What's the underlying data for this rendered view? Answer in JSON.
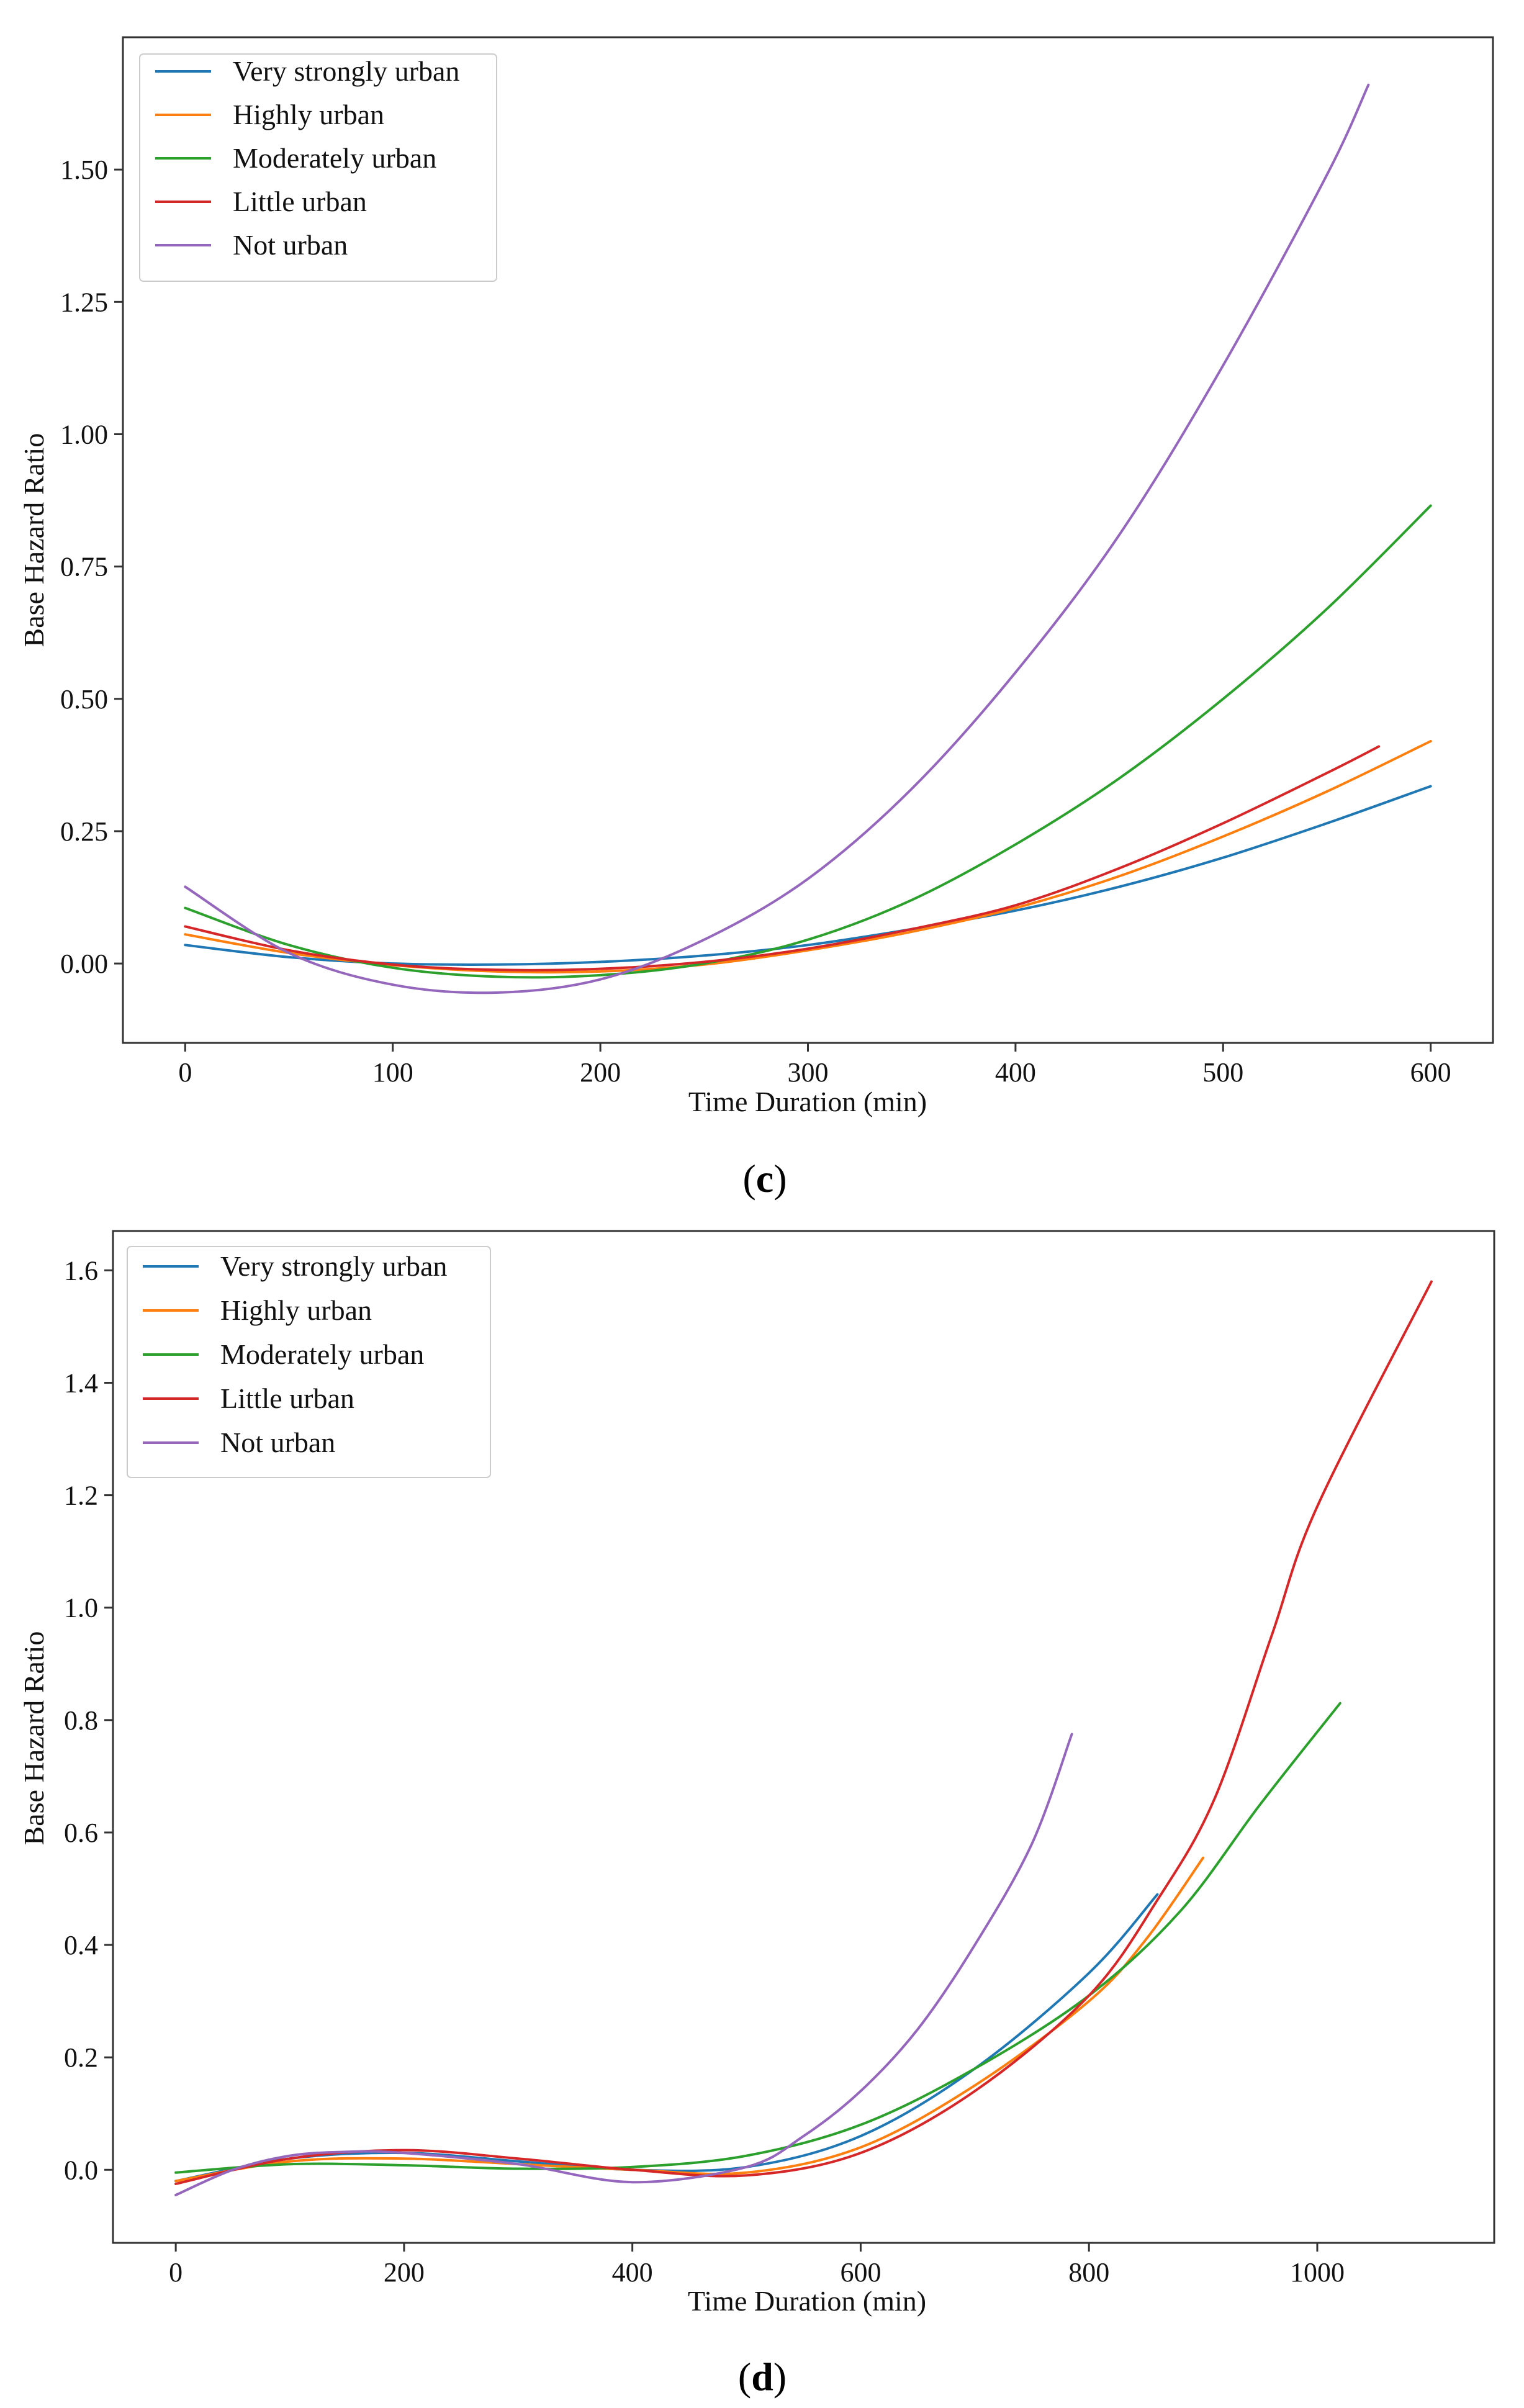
{
  "colors": {
    "very_strongly_urban": "#1f77b4",
    "highly_urban": "#ff7f0e",
    "moderately_urban": "#2ca02c",
    "little_urban": "#d62728",
    "not_urban": "#9467bd"
  },
  "chart_data": [
    {
      "type": "line",
      "panel": "c",
      "panel_label": "c",
      "title": "",
      "xlabel": "Time Duration (min)",
      "ylabel": "Base Hazard Ratio",
      "xlim": [
        -30,
        630
      ],
      "ylim": [
        -0.15,
        1.75
      ],
      "xticks": [
        0,
        100,
        200,
        300,
        400,
        500,
        600
      ],
      "xtick_labels": [
        "0",
        "100",
        "200",
        "300",
        "400",
        "500",
        "600"
      ],
      "yticks": [
        0.0,
        0.25,
        0.5,
        0.75,
        1.0,
        1.25,
        1.5
      ],
      "ytick_labels": [
        "0.00",
        "0.25",
        "0.50",
        "0.75",
        "1.00",
        "1.25",
        "1.50"
      ],
      "legend_position": "top-left",
      "series": [
        {
          "name": "Very strongly urban",
          "color_key": "very_strongly_urban",
          "x": [
            0,
            50,
            100,
            150,
            200,
            250,
            300,
            350,
            400,
            450,
            500,
            550,
            600
          ],
          "y": [
            0.035,
            0.012,
            0.0,
            -0.002,
            0.003,
            0.015,
            0.035,
            0.065,
            0.1,
            0.145,
            0.2,
            0.265,
            0.335
          ]
        },
        {
          "name": "Highly urban",
          "color_key": "highly_urban",
          "x": [
            0,
            50,
            100,
            150,
            200,
            250,
            300,
            350,
            400,
            450,
            500,
            550,
            600
          ],
          "y": [
            0.055,
            0.02,
            -0.003,
            -0.015,
            -0.015,
            -0.002,
            0.025,
            0.06,
            0.105,
            0.165,
            0.24,
            0.325,
            0.42
          ]
        },
        {
          "name": "Moderately urban",
          "color_key": "moderately_urban",
          "x": [
            0,
            50,
            100,
            150,
            200,
            250,
            300,
            350,
            400,
            450,
            500,
            550,
            600
          ],
          "y": [
            0.105,
            0.035,
            -0.008,
            -0.025,
            -0.022,
            0.0,
            0.045,
            0.12,
            0.225,
            0.35,
            0.5,
            0.67,
            0.865
          ]
        },
        {
          "name": "Little urban",
          "color_key": "little_urban",
          "x": [
            0,
            50,
            100,
            150,
            200,
            250,
            300,
            350,
            400,
            450,
            500,
            550,
            575
          ],
          "y": [
            0.07,
            0.025,
            -0.002,
            -0.012,
            -0.01,
            0.003,
            0.028,
            0.065,
            0.11,
            0.18,
            0.265,
            0.36,
            0.41
          ]
        },
        {
          "name": "Not urban",
          "color_key": "not_urban",
          "x": [
            0,
            50,
            100,
            150,
            200,
            250,
            300,
            350,
            400,
            450,
            500,
            550,
            570
          ],
          "y": [
            0.145,
            0.02,
            -0.04,
            -0.055,
            -0.03,
            0.045,
            0.16,
            0.33,
            0.55,
            0.81,
            1.13,
            1.49,
            1.66
          ]
        }
      ]
    },
    {
      "type": "line",
      "panel": "d",
      "panel_label": "d",
      "title": "",
      "xlabel": "Time Duration (min)",
      "ylabel": "Base Hazard Ratio",
      "xlim": [
        -55,
        1155
      ],
      "ylim": [
        -0.13,
        1.67
      ],
      "xticks": [
        0,
        200,
        400,
        600,
        800,
        1000
      ],
      "xtick_labels": [
        "0",
        "200",
        "400",
        "600",
        "800",
        "1000"
      ],
      "yticks": [
        0.0,
        0.2,
        0.4,
        0.6,
        0.8,
        1.0,
        1.2,
        1.4,
        1.6
      ],
      "ytick_labels": [
        "0.0",
        "0.2",
        "0.4",
        "0.6",
        "0.8",
        "1.0",
        "1.2",
        "1.4",
        "1.6"
      ],
      "legend_position": "top-left",
      "series": [
        {
          "name": "Very strongly urban",
          "color_key": "very_strongly_urban",
          "x": [
            0,
            100,
            200,
            300,
            400,
            500,
            600,
            700,
            800,
            860
          ],
          "y": [
            -0.02,
            0.02,
            0.03,
            0.015,
            0.0,
            0.005,
            0.06,
            0.18,
            0.35,
            0.49
          ]
        },
        {
          "name": "Highly urban",
          "color_key": "highly_urban",
          "x": [
            0,
            100,
            200,
            300,
            400,
            500,
            600,
            700,
            800,
            850,
            900
          ],
          "y": [
            -0.02,
            0.015,
            0.02,
            0.01,
            0.0,
            -0.005,
            0.04,
            0.15,
            0.3,
            0.41,
            0.555
          ]
        },
        {
          "name": "Moderately urban",
          "color_key": "moderately_urban",
          "x": [
            0,
            100,
            200,
            300,
            400,
            500,
            600,
            700,
            800,
            880,
            950,
            1020
          ],
          "y": [
            -0.005,
            0.01,
            0.008,
            0.002,
            0.005,
            0.025,
            0.08,
            0.18,
            0.31,
            0.46,
            0.65,
            0.83
          ]
        },
        {
          "name": "Little urban",
          "color_key": "little_urban",
          "x": [
            0,
            100,
            200,
            300,
            400,
            500,
            600,
            700,
            800,
            860,
            910,
            960,
            1000,
            1100
          ],
          "y": [
            -0.025,
            0.02,
            0.035,
            0.02,
            0.0,
            -0.01,
            0.03,
            0.14,
            0.31,
            0.48,
            0.66,
            0.95,
            1.18,
            1.58
          ]
        },
        {
          "name": "Not urban",
          "color_key": "not_urban",
          "x": [
            0,
            50,
            100,
            150,
            200,
            300,
            400,
            500,
            550,
            600,
            650,
            700,
            750,
            785
          ],
          "y": [
            -0.045,
            0.0,
            0.025,
            0.032,
            0.03,
            0.01,
            -0.022,
            0.005,
            0.06,
            0.14,
            0.25,
            0.4,
            0.58,
            0.775
          ]
        }
      ]
    }
  ]
}
